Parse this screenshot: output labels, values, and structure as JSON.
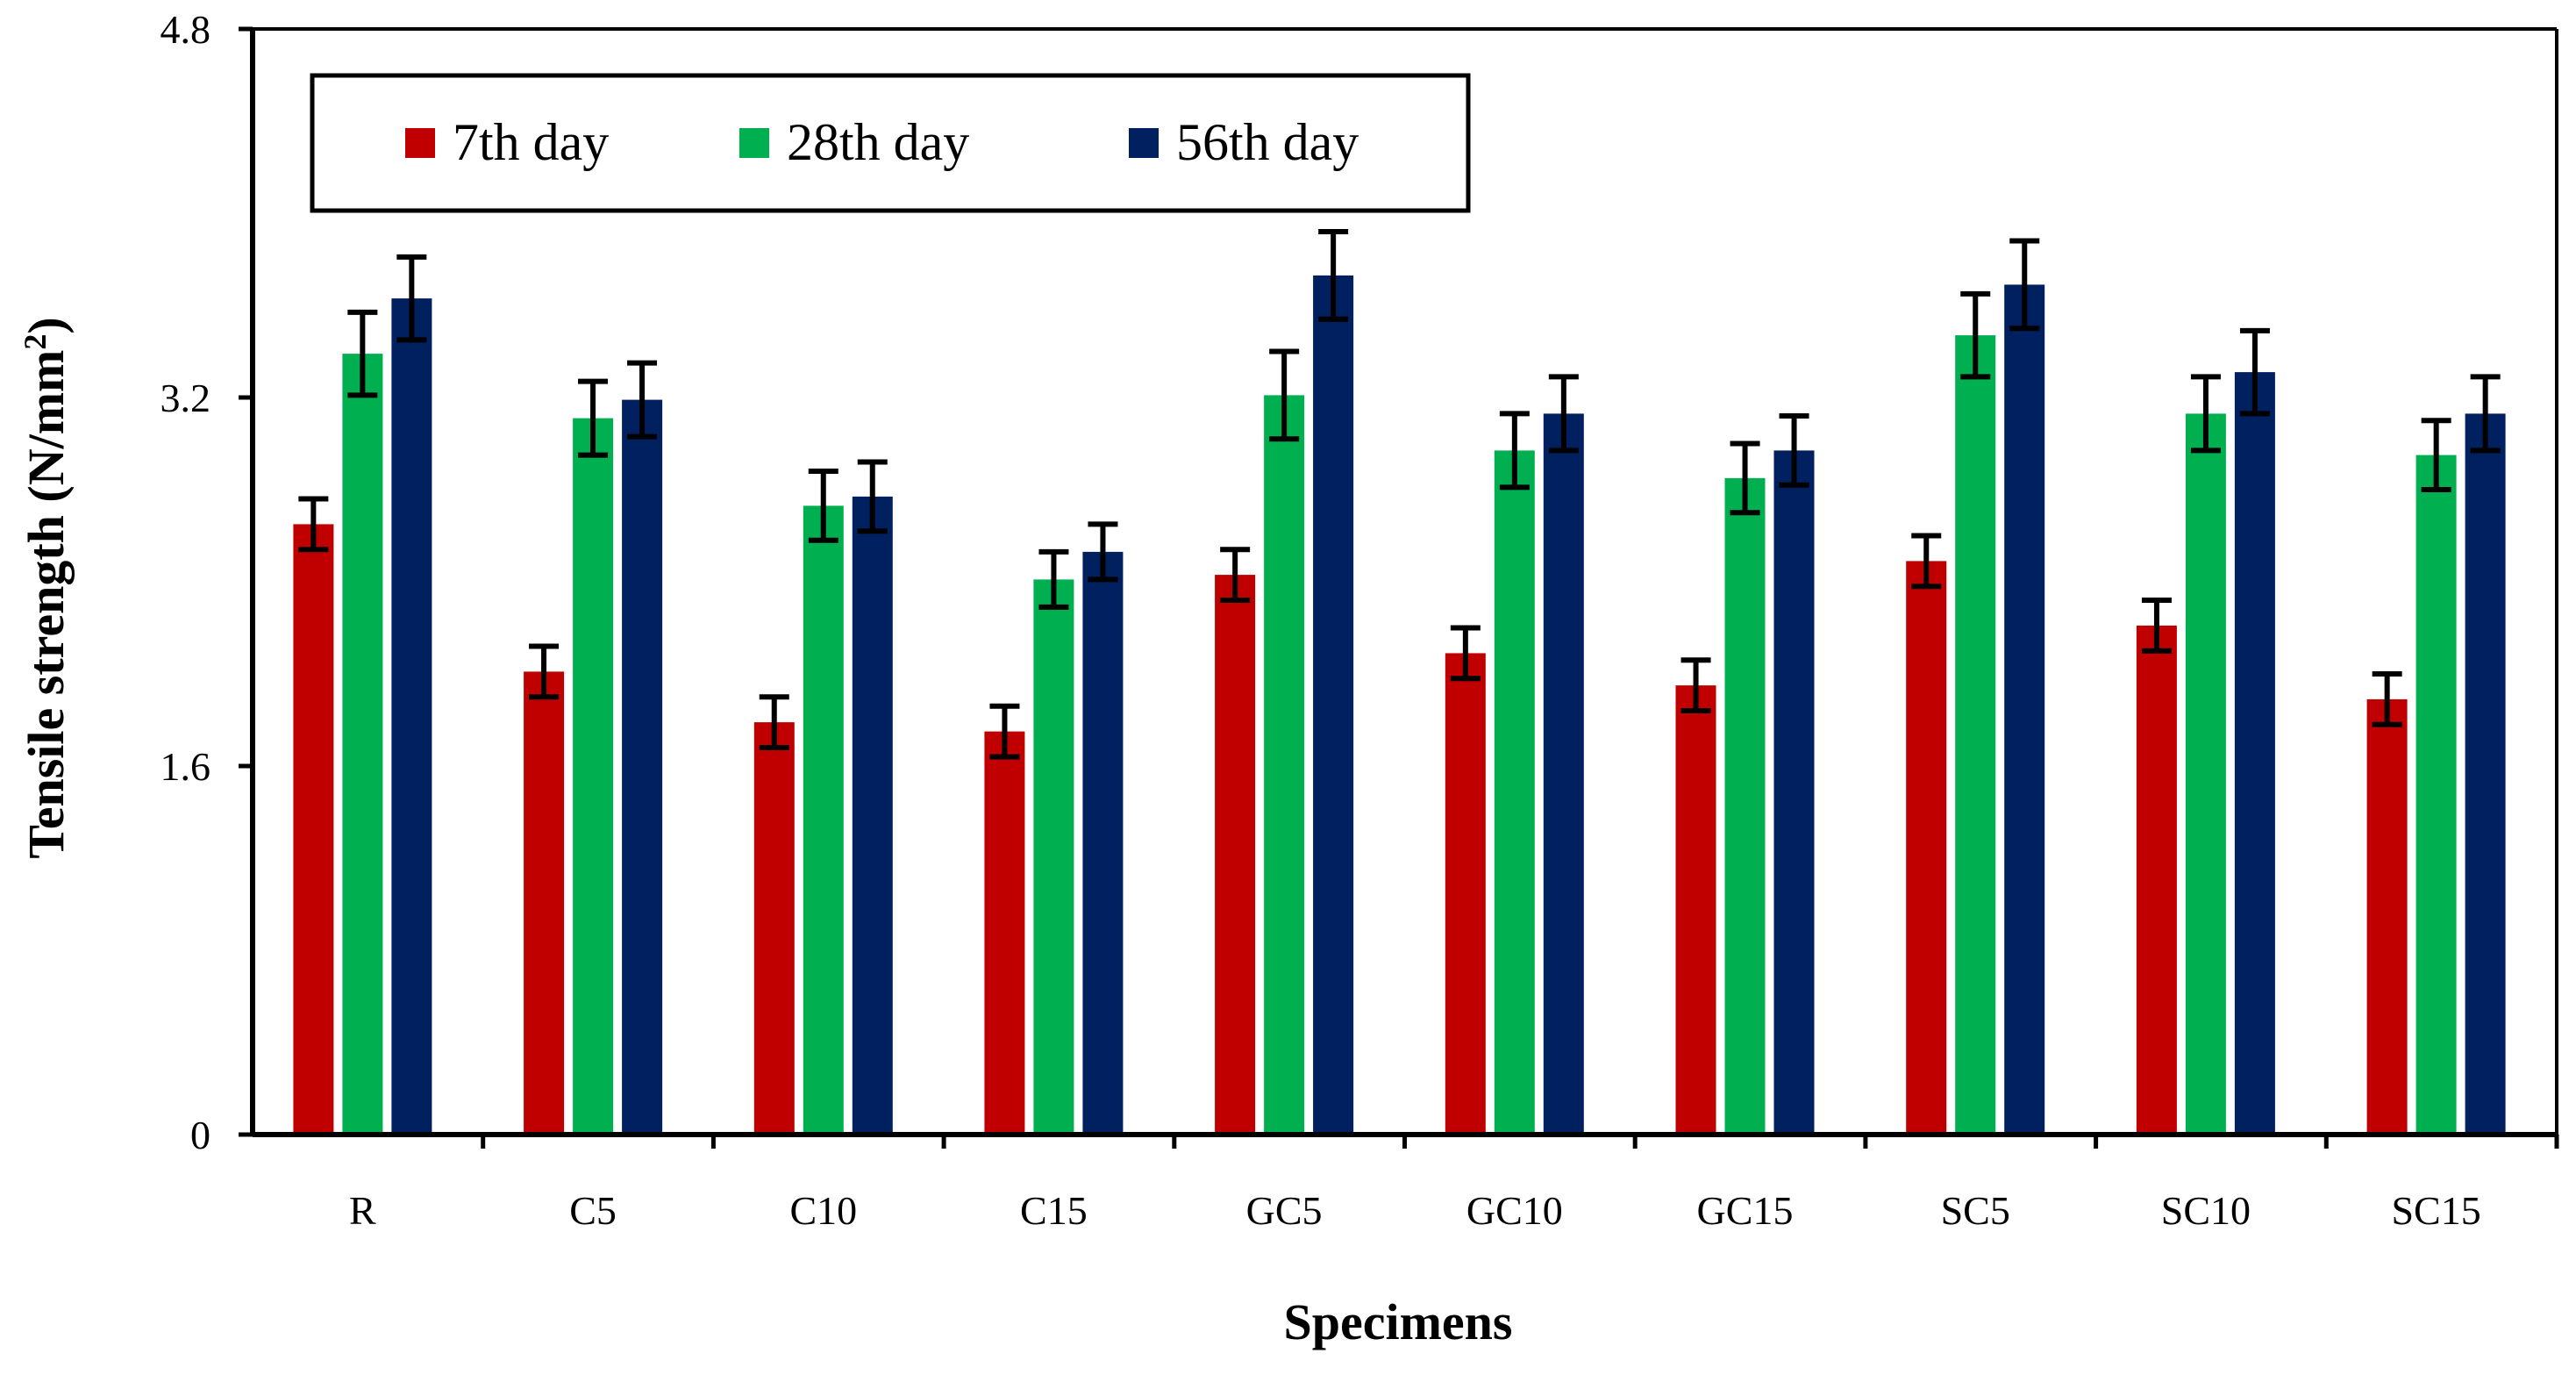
{
  "chart_data": {
    "type": "bar",
    "title": "",
    "xlabel": "Specimens",
    "ylabel": "Tensile strength (N/mm",
    "ylabel_sup": "2",
    "ylabel_close": ")",
    "ylim": [
      0,
      4.8
    ],
    "yticks": [
      0,
      1.6,
      3.2,
      4.8
    ],
    "ytick_labels": [
      "0",
      "1.6",
      "3.2",
      "4.8"
    ],
    "grid": false,
    "legend_position": "top-left",
    "categories": [
      "R",
      "C5",
      "C10",
      "C15",
      "GC5",
      "GC10",
      "GC15",
      "SC5",
      "SC10",
      "SC15"
    ],
    "series": [
      {
        "name": "7th day",
        "color": "#c00000",
        "values": [
          2.65,
          2.01,
          1.79,
          1.75,
          2.43,
          2.09,
          1.95,
          2.49,
          2.21,
          1.89
        ],
        "errors": [
          0.11,
          0.11,
          0.11,
          0.11,
          0.11,
          0.11,
          0.11,
          0.11,
          0.11,
          0.11
        ]
      },
      {
        "name": "28th day",
        "color": "#00b050",
        "values": [
          3.39,
          3.11,
          2.73,
          2.41,
          3.21,
          2.97,
          2.85,
          3.47,
          3.13,
          2.95
        ],
        "errors": [
          0.18,
          0.16,
          0.15,
          0.12,
          0.19,
          0.16,
          0.15,
          0.18,
          0.16,
          0.15
        ]
      },
      {
        "name": "56th day",
        "color": "#002060",
        "values": [
          3.63,
          3.19,
          2.77,
          2.53,
          3.73,
          3.13,
          2.97,
          3.69,
          3.31,
          3.13
        ],
        "errors": [
          0.18,
          0.16,
          0.15,
          0.12,
          0.19,
          0.16,
          0.15,
          0.19,
          0.18,
          0.16
        ]
      }
    ]
  }
}
